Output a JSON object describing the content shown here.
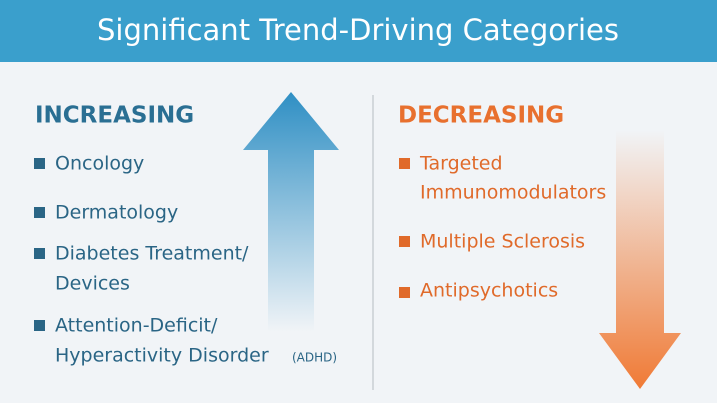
{
  "header": {
    "title": "Significant Trend-Driving Categories"
  },
  "increasing": {
    "heading": "INCREASING",
    "items": [
      {
        "lines": [
          "Oncology"
        ]
      },
      {
        "lines": [
          "Dermatology"
        ]
      },
      {
        "lines": [
          "Diabetes Treatment/",
          "Devices"
        ]
      },
      {
        "lines": [
          "Attention-Deficit/",
          "Hyperactivity Disorder"
        ],
        "note": "(ADHD)"
      }
    ]
  },
  "decreasing": {
    "heading": "DECREASING",
    "items": [
      {
        "lines": [
          "Targeted",
          "Immunomodulators"
        ]
      },
      {
        "lines": [
          "Multiple Sclerosis"
        ]
      },
      {
        "lines": [
          "Antipsychotics"
        ]
      }
    ]
  }
}
